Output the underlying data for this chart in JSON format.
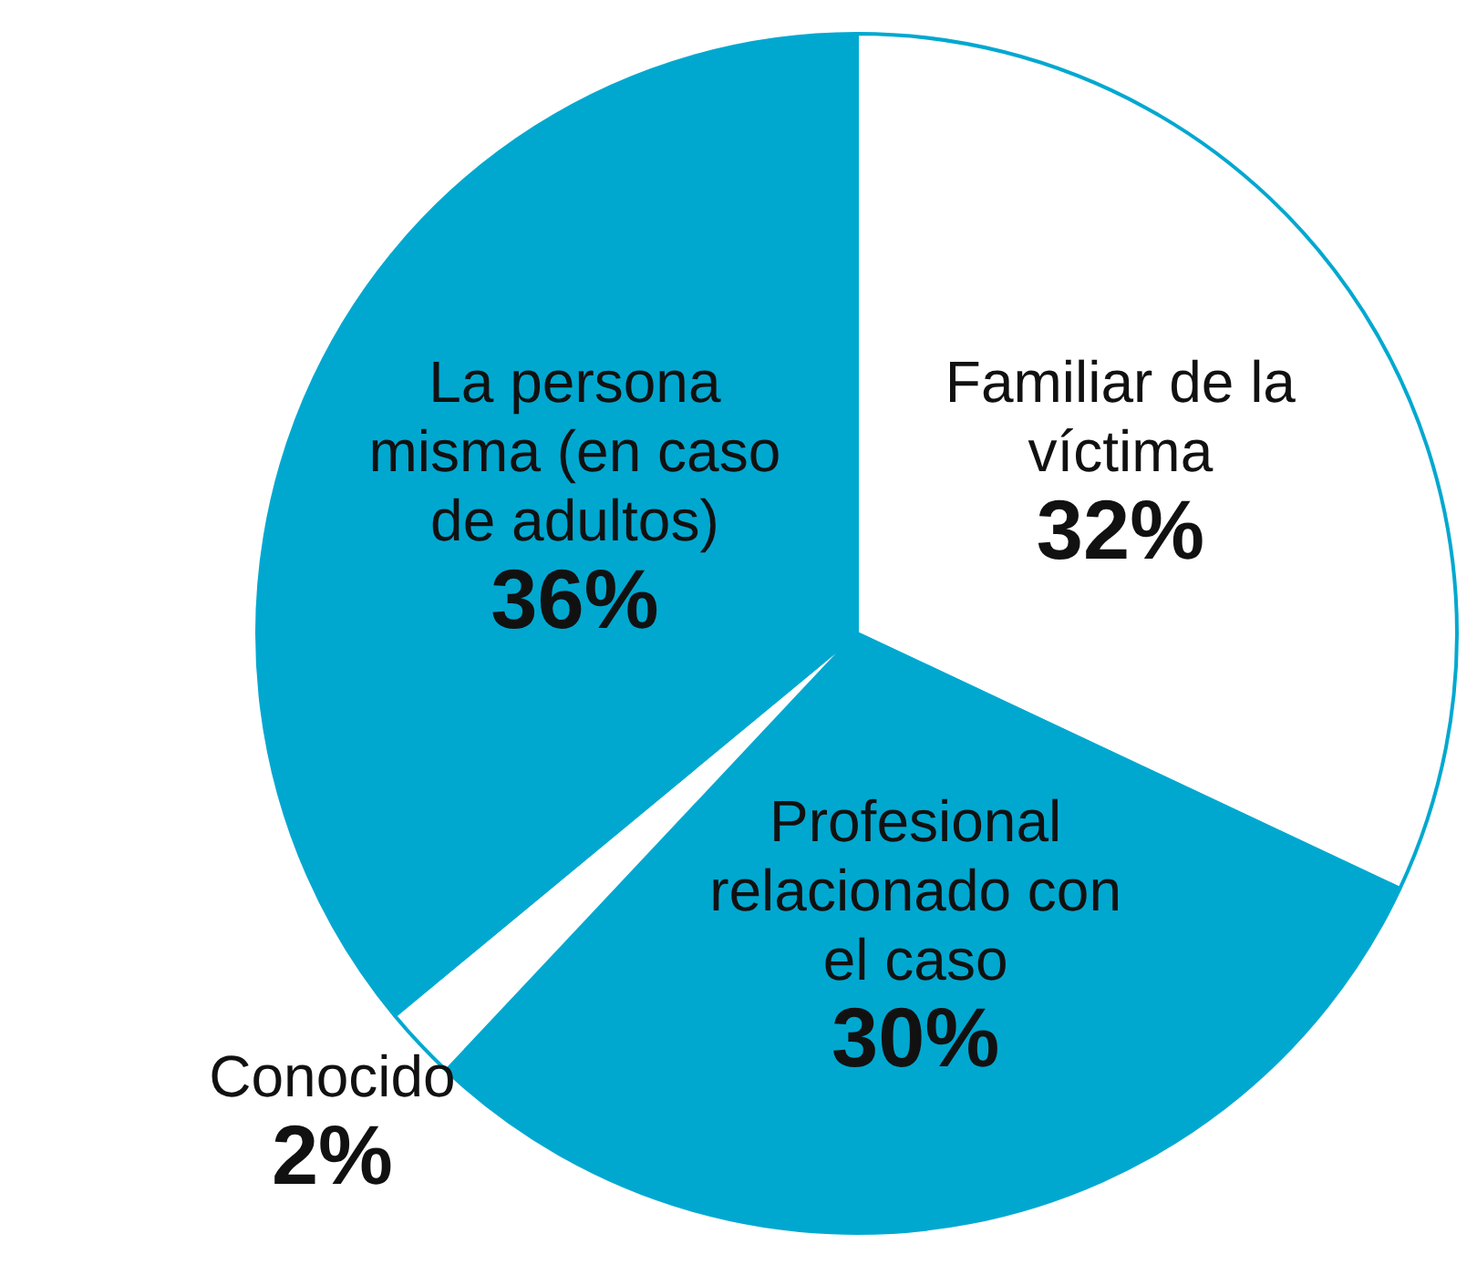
{
  "chart_data": {
    "type": "pie",
    "categories": [
      "Familiar de la víctima",
      "Profesional relacionado con el caso",
      "Conocido",
      "La persona misma (en caso de adultos)"
    ],
    "values": [
      32,
      30,
      2,
      36
    ],
    "value_labels": [
      "32%",
      "30%",
      "2%",
      "36%"
    ],
    "colors": [
      "#ffffff",
      "#00a8d0",
      "#ffffff",
      "#00a8d0"
    ],
    "legend": false
  }
}
